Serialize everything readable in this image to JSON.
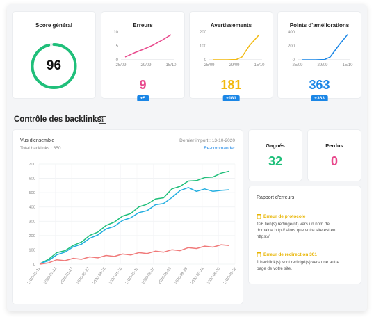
{
  "score": {
    "title": "Score général",
    "value": "96",
    "fraction": 0.96,
    "color": "#1fbf7a"
  },
  "kpis": [
    {
      "title": "Erreurs",
      "value": "9",
      "badge": "+5",
      "color": "#e8478b",
      "ticks_y": [
        "10",
        "5",
        "0"
      ],
      "ticks_x": [
        "25/09",
        "29/09",
        "15/10"
      ],
      "points": [
        [
          0,
          1
        ],
        [
          0.2,
          2.5
        ],
        [
          0.4,
          3.8
        ],
        [
          0.6,
          5.2
        ],
        [
          0.8,
          7
        ],
        [
          1,
          9
        ]
      ]
    },
    {
      "title": "Avertissements",
      "value": "181",
      "badge": "+181",
      "color": "#f2b90f",
      "ticks_y": [
        "200",
        "100",
        "0"
      ],
      "ticks_x": [
        "25/09",
        "29/09",
        "15/10"
      ],
      "points": [
        [
          0,
          0
        ],
        [
          0.3,
          0
        ],
        [
          0.5,
          2
        ],
        [
          0.62,
          20
        ],
        [
          0.78,
          100
        ],
        [
          1,
          181
        ]
      ]
    },
    {
      "title": "Points d'améliorations",
      "value": "363",
      "badge": "+363",
      "color": "#1a86e6",
      "ticks_y": [
        "400",
        "200",
        "0"
      ],
      "ticks_x": [
        "25/09",
        "29/09",
        "15/10"
      ],
      "points": [
        [
          0,
          0
        ],
        [
          0.3,
          0
        ],
        [
          0.5,
          4
        ],
        [
          0.62,
          40
        ],
        [
          0.8,
          200
        ],
        [
          1,
          363
        ]
      ]
    }
  ],
  "backlinks": {
    "section_title": "Contrôle des backlinks",
    "info_icon": "info-icon",
    "overview_title": "Vus d'ensemble",
    "total": "Total backlinks : 650",
    "last_import": "Dernier import : 13-10-2020",
    "recommend": "Re-commander",
    "y_ticks": [
      "700",
      "600",
      "500",
      "400",
      "300",
      "200",
      "100",
      "0"
    ],
    "x_ticks": [
      "2020-03-21",
      "2020-07-12",
      "2020-03-27",
      "2020-05-27",
      "2020-04-15",
      "2020-04-18",
      "2020-05-25",
      "2020-08-25",
      "2020-09-03",
      "2020-09-28",
      "2020-05-21",
      "2020-06-30",
      "2020-09-18"
    ]
  },
  "chart_data": {
    "type": "line",
    "ylim": [
      0,
      700
    ],
    "series": [
      {
        "color": "#1fbf7a",
        "values": [
          5,
          40,
          75,
          100,
          125,
          160,
          195,
          230,
          265,
          300,
          330,
          360,
          395,
          425,
          450,
          470,
          520,
          550,
          575,
          590,
          600,
          615,
          630,
          650
        ]
      },
      {
        "color": "#22aee0",
        "values": [
          5,
          30,
          60,
          90,
          115,
          145,
          175,
          210,
          240,
          270,
          300,
          330,
          355,
          380,
          410,
          430,
          460,
          520,
          530,
          515,
          520,
          515,
          510,
          520
        ]
      },
      {
        "color": "#f07a7a",
        "values": [
          0,
          15,
          25,
          30,
          35,
          40,
          45,
          50,
          55,
          60,
          65,
          70,
          75,
          80,
          85,
          90,
          95,
          100,
          110,
          115,
          120,
          125,
          130,
          130
        ]
      }
    ]
  },
  "gained": {
    "title": "Gagnés",
    "value": "32",
    "color": "#1fbf7a"
  },
  "lost": {
    "title": "Perdus",
    "value": "0",
    "color": "#e8478b"
  },
  "errors_report": {
    "title": "Rapport d'erreurs",
    "items": [
      {
        "title": "Erreur de protocole",
        "text": [
          "126 lien(s) redirige(nt) vers un nom de",
          "domaine http:// alors que votre site est en",
          "https://"
        ]
      },
      {
        "title": "Erreur de redirection 301",
        "text": [
          "1 backlink(s) sont redirigé(s) vers une autre",
          "page de votre site."
        ]
      }
    ]
  }
}
